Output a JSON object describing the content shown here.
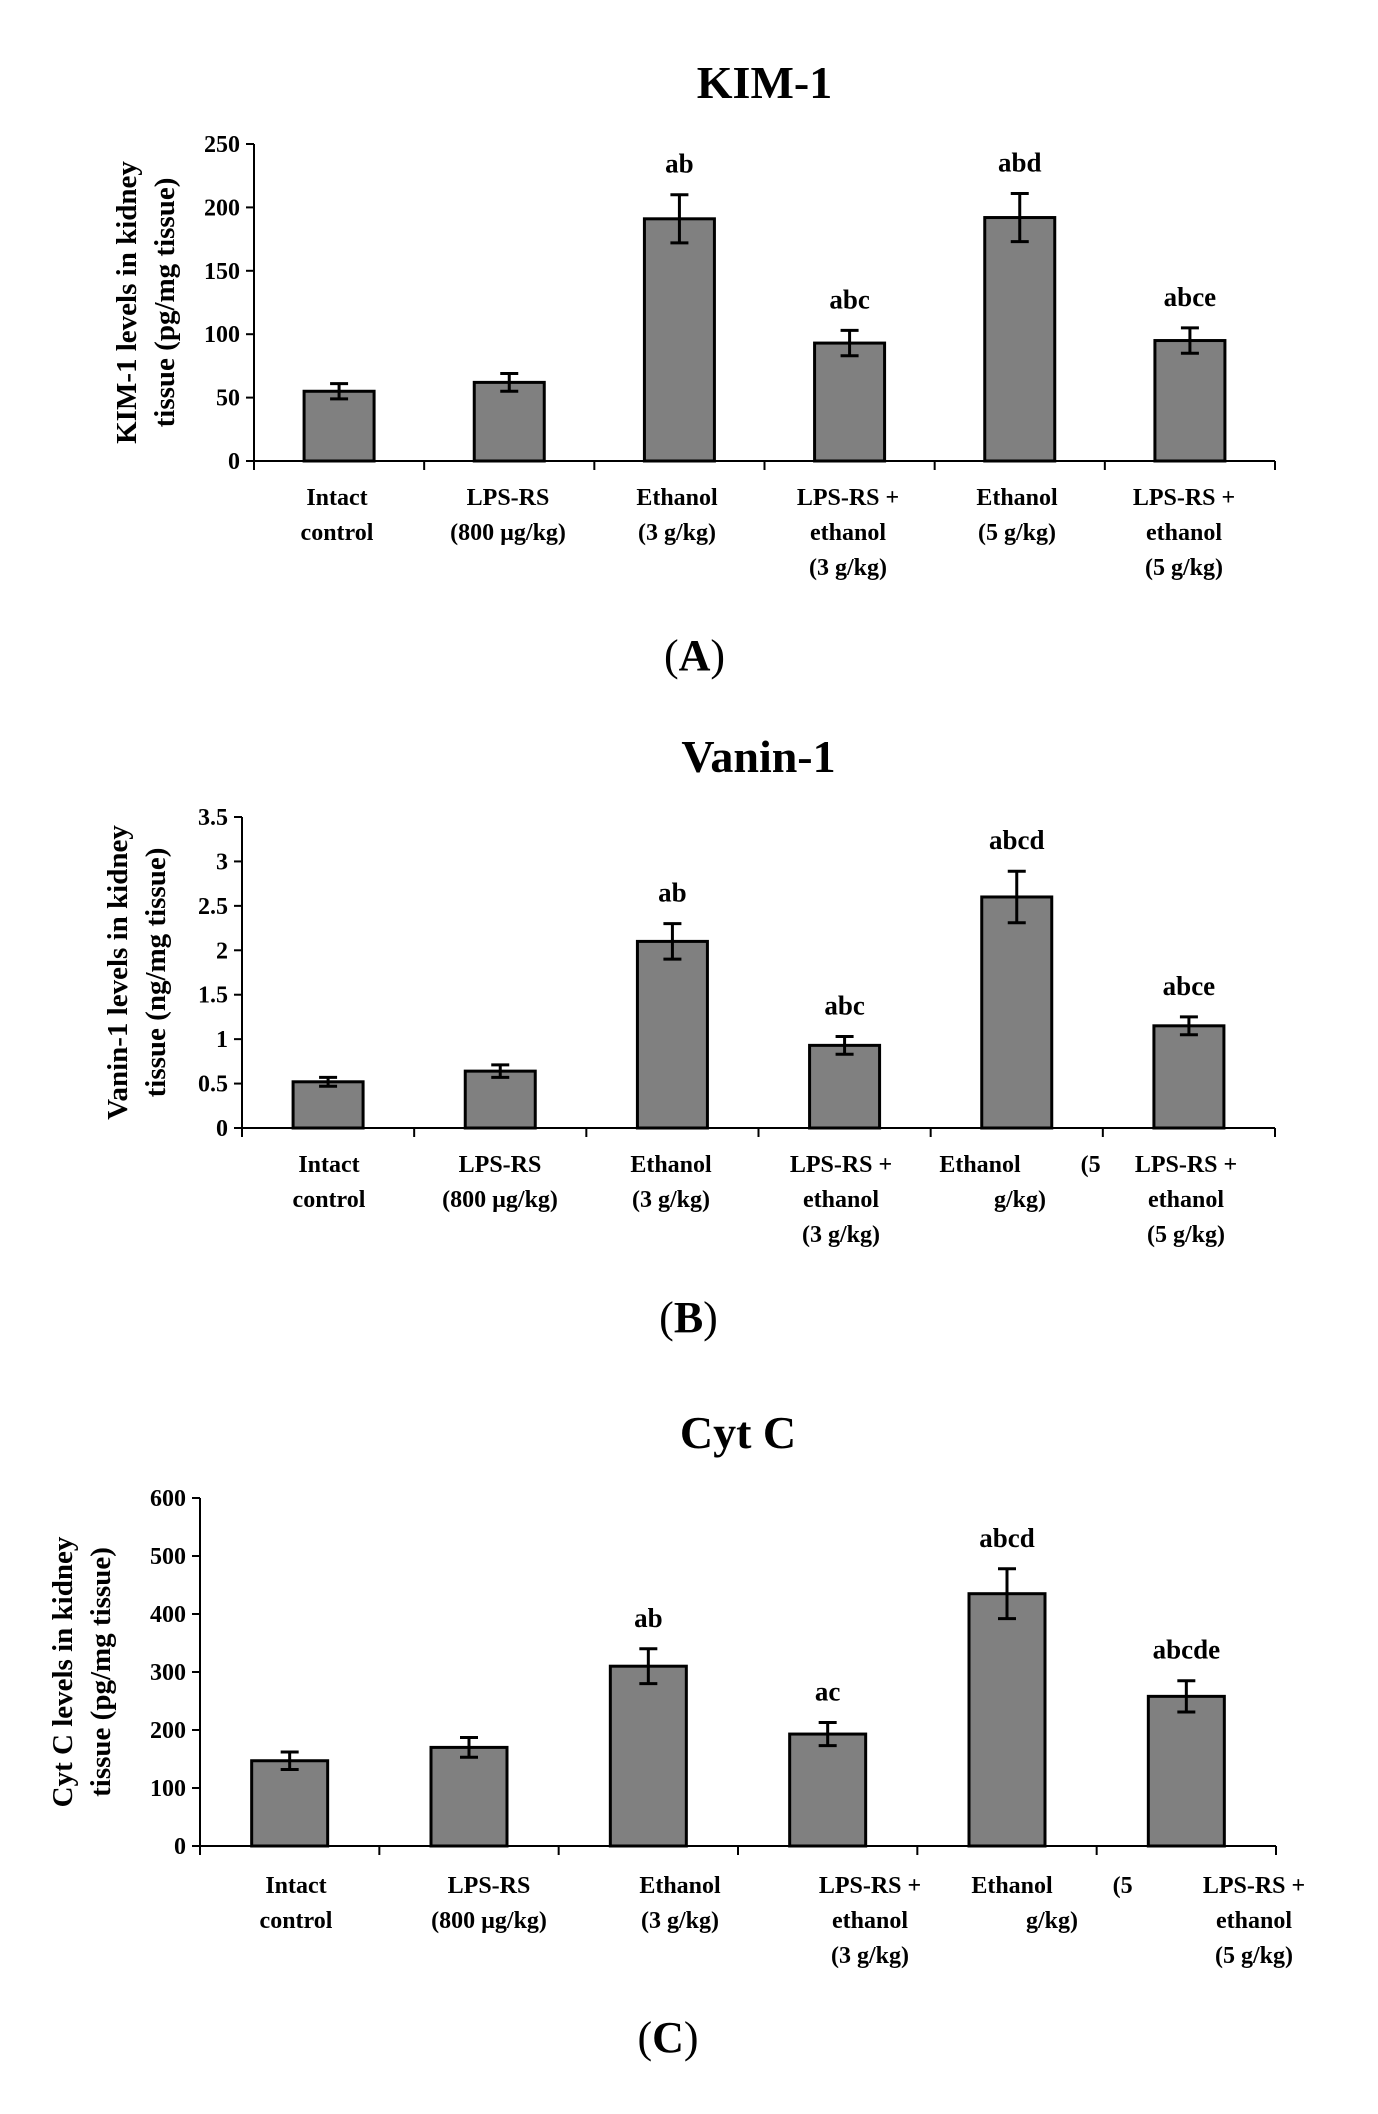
{
  "figure": {
    "panel_labels": [
      "A",
      "B",
      "C"
    ]
  },
  "colors": {
    "bar_fill": "#808080",
    "bar_stroke": "#000000",
    "text": "#000000"
  },
  "chart_data": [
    {
      "type": "bar",
      "title": "KIM-1",
      "ylabel_lines": [
        "KIM-1 levels in kidney",
        "tissue (pg/mg tissue)"
      ],
      "ylim": [
        0,
        250
      ],
      "yticks": [
        0,
        50,
        100,
        150,
        200,
        250
      ],
      "ytick_labels": [
        "0",
        "50",
        "100",
        "150",
        "200",
        "250"
      ],
      "categories": [
        [
          "Intact",
          "control"
        ],
        [
          "LPS-RS",
          "(800 µg/kg)"
        ],
        [
          "Ethanol",
          "(3 g/kg)"
        ],
        [
          "LPS-RS +",
          "ethanol",
          "(3 g/kg)"
        ],
        [
          "Ethanol",
          "(5 g/kg)"
        ],
        [
          "LPS-RS +",
          "ethanol",
          "(5 g/kg)"
        ]
      ],
      "values": [
        55,
        62,
        191,
        93,
        192,
        95
      ],
      "errors": [
        6,
        7,
        19,
        10,
        19,
        10
      ],
      "significance": [
        "",
        "",
        "ab",
        "abc",
        "abd",
        "abce"
      ]
    },
    {
      "type": "bar",
      "title": "Vanin-1",
      "ylabel_lines": [
        "Vanin-1 levels in kidney",
        "tissue (ng/mg tissue)"
      ],
      "ylim": [
        0,
        3.5
      ],
      "yticks": [
        0,
        0.5,
        1,
        1.5,
        2,
        2.5,
        3,
        3.5
      ],
      "ytick_labels": [
        "0",
        "0.5",
        "1",
        "1.5",
        "2",
        "2.5",
        "3",
        "3.5"
      ],
      "categories": [
        [
          "Intact",
          "control"
        ],
        [
          "LPS-RS",
          "(800 µg/kg)"
        ],
        [
          "Ethanol",
          "(3 g/kg)"
        ],
        [
          "LPS-RS +",
          "ethanol",
          "(3 g/kg)"
        ],
        [
          "Ethanol          (5",
          "g/kg)"
        ],
        [
          "LPS-RS +",
          "ethanol",
          "(5 g/kg)"
        ]
      ],
      "values": [
        0.52,
        0.64,
        2.1,
        0.93,
        2.6,
        1.15
      ],
      "errors": [
        0.05,
        0.07,
        0.2,
        0.1,
        0.29,
        0.1
      ],
      "significance": [
        "",
        "",
        "ab",
        "abc",
        "abcd",
        "abce"
      ]
    },
    {
      "type": "bar",
      "title": "Cyt C",
      "ylabel_lines": [
        "Cyt C levels in kidney",
        "tissue (pg/mg tissue)"
      ],
      "ylim": [
        0,
        600
      ],
      "yticks": [
        0,
        100,
        200,
        300,
        400,
        500,
        600
      ],
      "ytick_labels": [
        "0",
        "100",
        "200",
        "300",
        "400",
        "500",
        "600"
      ],
      "categories": [
        [
          "Intact",
          "control"
        ],
        [
          "LPS-RS",
          "(800 µg/kg)"
        ],
        [
          "Ethanol",
          "(3 g/kg)"
        ],
        [
          "LPS-RS +",
          "ethanol",
          "(3 g/kg)"
        ],
        [
          "Ethanol          (5",
          "g/kg)"
        ],
        [
          "LPS-RS +",
          "ethanol",
          "(5 g/kg)"
        ]
      ],
      "values": [
        147,
        170,
        310,
        193,
        435,
        258
      ],
      "errors": [
        15,
        17,
        30,
        20,
        43,
        27
      ],
      "significance": [
        "",
        "",
        "ab",
        "ac",
        "abcd",
        "abcde"
      ]
    }
  ]
}
